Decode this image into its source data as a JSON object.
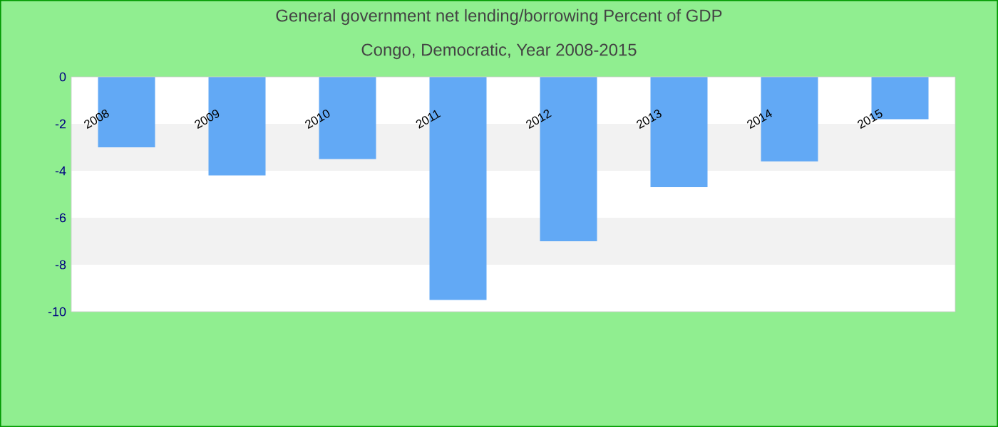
{
  "chart_data": {
    "type": "bar",
    "title": "General government net lending/borrowing  Percent of GDP",
    "subtitle": "Congo, Democratic, Year 2008-2015",
    "categories": [
      "2008",
      "2009",
      "2010",
      "2011",
      "2012",
      "2013",
      "2014",
      "2015"
    ],
    "values": [
      -3.0,
      -4.2,
      -3.5,
      -9.5,
      -7.0,
      -4.7,
      -3.6,
      -1.8
    ],
    "color": "#62a9f5",
    "ylim": [
      -10,
      0
    ],
    "yticks": [
      {
        "value": 0,
        "label": "0"
      },
      {
        "value": -2,
        "label": "-2"
      },
      {
        "value": -4,
        "label": "-4"
      },
      {
        "value": -6,
        "label": "-6"
      },
      {
        "value": -8,
        "label": "-8"
      },
      {
        "value": -10,
        "label": "-10"
      }
    ]
  }
}
